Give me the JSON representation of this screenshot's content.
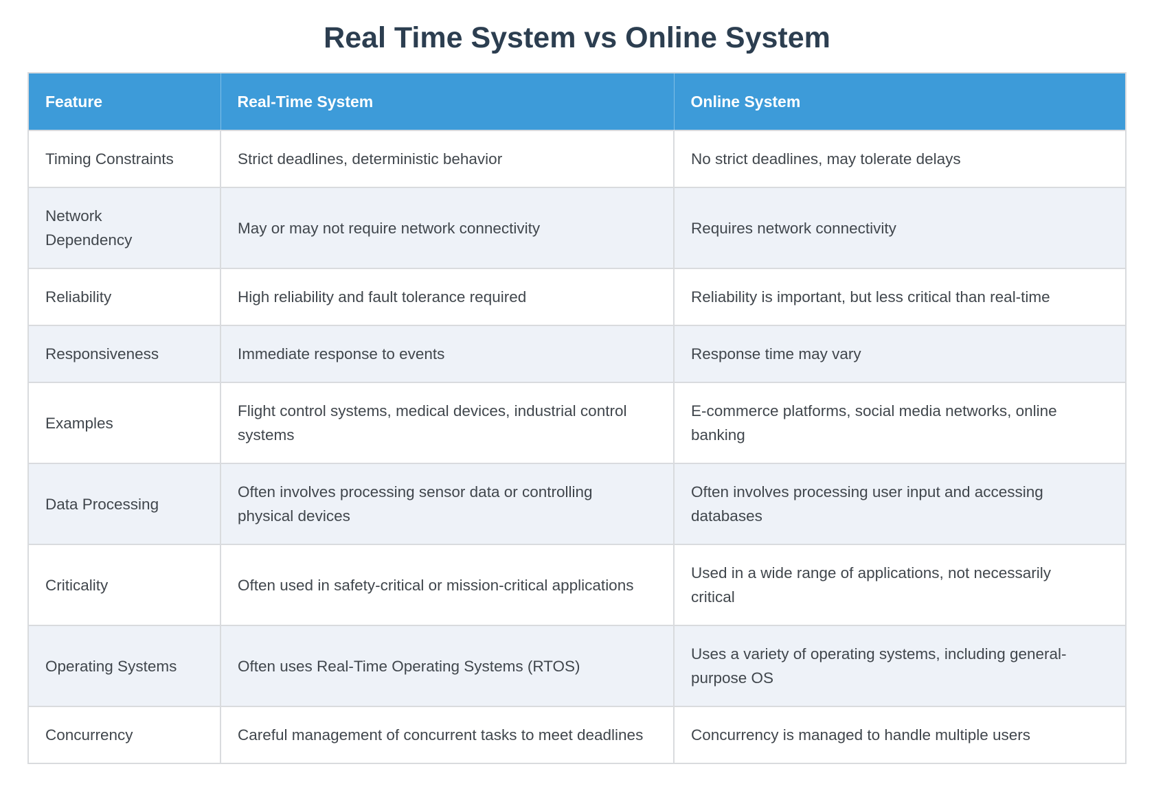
{
  "page": {
    "title": "Real Time System vs Online System"
  },
  "colors": {
    "header_bg": "#3d9bd9",
    "header_text": "#ffffff",
    "stripe_bg": "#eef2f8",
    "row_bg": "#ffffff",
    "border": "#d9dbde",
    "title_text": "#2c3e50",
    "body_text": "#40464c"
  },
  "chart_data": {
    "type": "table",
    "title": "Real Time System vs Online System",
    "columns": [
      "Feature",
      "Real-Time System",
      "Online System"
    ],
    "rows": [
      [
        "Timing Constraints",
        "Strict deadlines, deterministic behavior",
        "No strict deadlines, may tolerate delays"
      ],
      [
        "Network Dependency",
        "May or may not require network connectivity",
        "Requires network connectivity"
      ],
      [
        "Reliability",
        "High reliability and fault tolerance required",
        "Reliability is important, but less critical than real-time"
      ],
      [
        "Responsiveness",
        "Immediate response to events",
        "Response time may vary"
      ],
      [
        "Examples",
        "Flight control systems, medical devices, industrial control systems",
        "E-commerce platforms, social media networks, online banking"
      ],
      [
        "Data Processing",
        "Often involves processing sensor data or controlling physical devices",
        "Often involves processing user input and accessing databases"
      ],
      [
        "Criticality",
        "Often used in safety-critical or mission-critical applications",
        "Used in a wide range of applications, not necessarily critical"
      ],
      [
        "Operating Systems",
        "Often uses Real-Time Operating Systems (RTOS)",
        "Uses a variety of operating systems, including general-purpose OS"
      ],
      [
        "Concurrency",
        "Careful management of concurrent tasks to meet deadlines",
        "Concurrency is managed to handle multiple users"
      ]
    ]
  }
}
